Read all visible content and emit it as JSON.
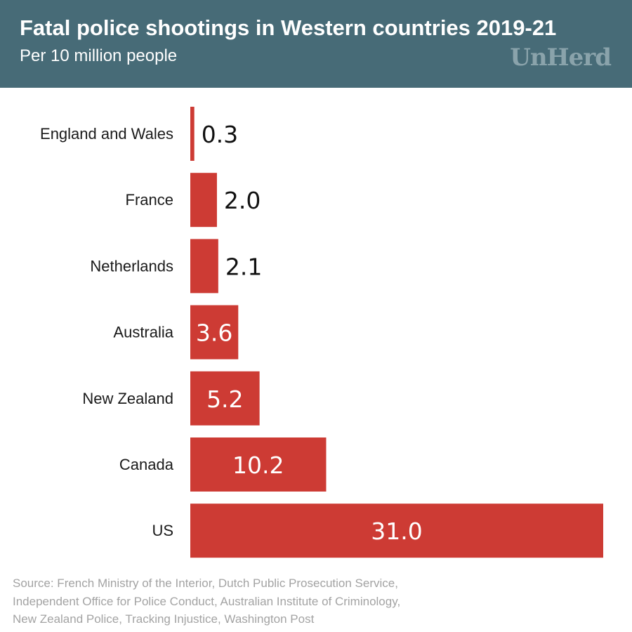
{
  "header": {
    "title": "Fatal police shootings in Western countries 2019-21",
    "subtitle": "Per 10 million people",
    "brand": "UnHerd"
  },
  "colors": {
    "header_bg": "#476b77",
    "bar": "#cd3b34",
    "label_outside": "#111111",
    "label_inside": "#ffffff",
    "brand": "#8aa3ab",
    "source_text": "#a3a3a3"
  },
  "chart_data": {
    "type": "bar",
    "orientation": "horizontal",
    "title": "Fatal police shootings in Western countries 2019-21",
    "subtitle": "Per 10 million people",
    "categories": [
      "England and Wales",
      "France",
      "Netherlands",
      "Australia",
      "New Zealand",
      "Canada",
      "US"
    ],
    "values": [
      0.3,
      2.0,
      2.1,
      3.6,
      5.2,
      10.2,
      31.0
    ],
    "value_labels": [
      "0.3",
      "2.0",
      "2.1",
      "3.6",
      "5.2",
      "10.2",
      "31.0"
    ],
    "xlabel": "",
    "ylabel": "",
    "xlim": [
      0,
      31.0
    ],
    "grid": false,
    "legend": "none"
  },
  "source": {
    "lines": [
      "Source:  French Ministry of the Interior, Dutch Public Prosecution Service,",
      "Independent Office for Police Conduct, Australian Institute of Criminology,",
      "New Zealand Police, Tracking Injustice, Washington Post"
    ]
  }
}
